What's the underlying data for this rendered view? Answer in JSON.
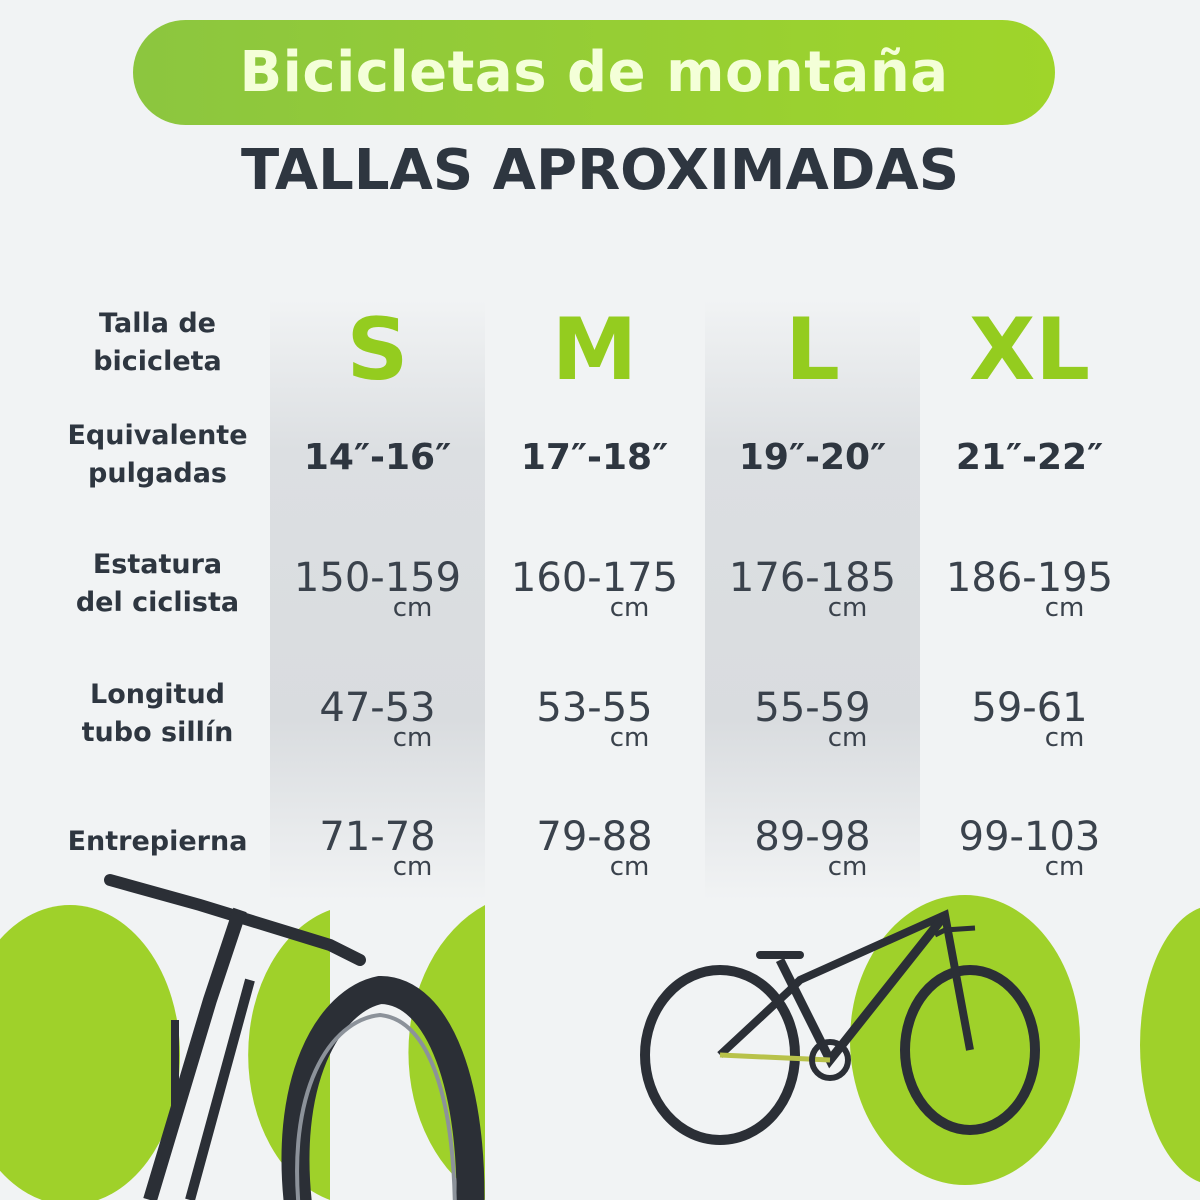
{
  "header": {
    "title": "Bicicletas de montaña",
    "subtitle": "TALLAS APROXIMADAS"
  },
  "colors": {
    "accent": "#94cc1f",
    "text": "#2e3640",
    "background": "#f1f3f4"
  },
  "table": {
    "row_labels": [
      {
        "line1": "Talla de",
        "line2": "bicicleta"
      },
      {
        "line1": "Equivalente",
        "line2": "pulgadas"
      },
      {
        "line1": "Estatura",
        "line2": "del ciclista"
      },
      {
        "line1": "Longitud",
        "line2": "tubo sillín"
      },
      {
        "line1": "Entrepierna",
        "line2": ""
      }
    ],
    "columns": [
      {
        "size": "S",
        "inches": "14″-16″",
        "height": "150-159",
        "seat_tube": "47-53",
        "inseam": "71-78"
      },
      {
        "size": "M",
        "inches": "17″-18″",
        "height": "160-175",
        "seat_tube": "53-55",
        "inseam": "79-88"
      },
      {
        "size": "L",
        "inches": "19″-20″",
        "height": "176-185",
        "seat_tube": "55-59",
        "inseam": "89-98"
      },
      {
        "size": "XL",
        "inches": "21″-22″",
        "height": "186-195",
        "seat_tube": "59-61",
        "inseam": "99-103"
      }
    ],
    "unit": "cm"
  },
  "images": [
    "mountain-bike-closeup",
    "mountain-bike-side"
  ]
}
